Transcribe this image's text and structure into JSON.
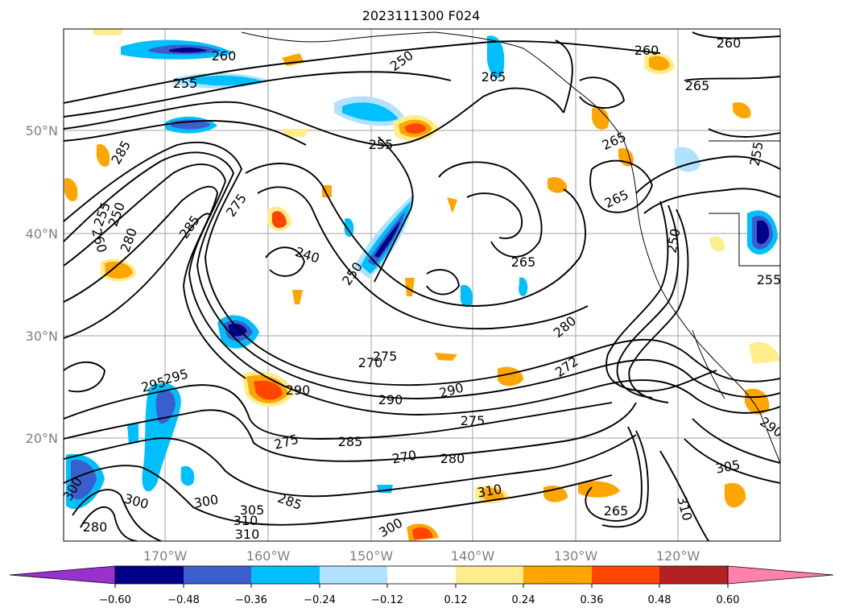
{
  "title": "2023111300 F024",
  "map": {
    "lon_labels": [
      "170°W",
      "160°W",
      "150°W",
      "140°W",
      "130°W",
      "120°W"
    ],
    "lat_labels": [
      "50°N",
      "40°N",
      "30°N",
      "20°N"
    ],
    "extent": {
      "lon": [
        180,
        110.5
      ],
      "lat": [
        10,
        60
      ]
    },
    "grid": true,
    "label_color": "#7f7f7f"
  },
  "colorbar": {
    "ticks": [
      "−0.60",
      "−0.48",
      "−0.36",
      "−0.24",
      "−0.12",
      "0.12",
      "0.24",
      "0.36",
      "0.48",
      "0.60"
    ],
    "colors": [
      "#9932cc",
      "#00008b",
      "#3a5fcd",
      "#00bfff",
      "#b0e2ff",
      "#ffffff",
      "#ffec8b",
      "#ffa500",
      "#ff4500",
      "#b22222",
      "#ff82ab"
    ],
    "extend": "both"
  },
  "contour_labels": [
    {
      "text": "260"
    },
    {
      "text": "250"
    },
    {
      "text": "265"
    },
    {
      "text": "260"
    },
    {
      "text": "260"
    },
    {
      "text": "255"
    },
    {
      "text": "265"
    },
    {
      "text": "255"
    },
    {
      "text": "255"
    },
    {
      "text": "285"
    },
    {
      "text": "265"
    },
    {
      "text": "265"
    },
    {
      "text": "255"
    },
    {
      "text": "250"
    },
    {
      "text": "285"
    },
    {
      "text": "275"
    },
    {
      "text": "260"
    },
    {
      "text": "280"
    },
    {
      "text": "240"
    },
    {
      "text": "250"
    },
    {
      "text": "265"
    },
    {
      "text": "250"
    },
    {
      "text": "255"
    },
    {
      "text": "280"
    },
    {
      "text": "270"
    },
    {
      "text": "275"
    },
    {
      "text": "295"
    },
    {
      "text": "295"
    },
    {
      "text": "290"
    },
    {
      "text": "290"
    },
    {
      "text": "290"
    },
    {
      "text": "272"
    },
    {
      "text": "275"
    },
    {
      "text": "285"
    },
    {
      "text": "275"
    },
    {
      "text": "270"
    },
    {
      "text": "280"
    },
    {
      "text": "305"
    },
    {
      "text": "290"
    },
    {
      "text": "300"
    },
    {
      "text": "300"
    },
    {
      "text": "300"
    },
    {
      "text": "305"
    },
    {
      "text": "310"
    },
    {
      "text": "310"
    },
    {
      "text": "310"
    },
    {
      "text": "285"
    },
    {
      "text": "300"
    },
    {
      "text": "265"
    },
    {
      "text": "310"
    },
    {
      "text": "280"
    }
  ]
}
